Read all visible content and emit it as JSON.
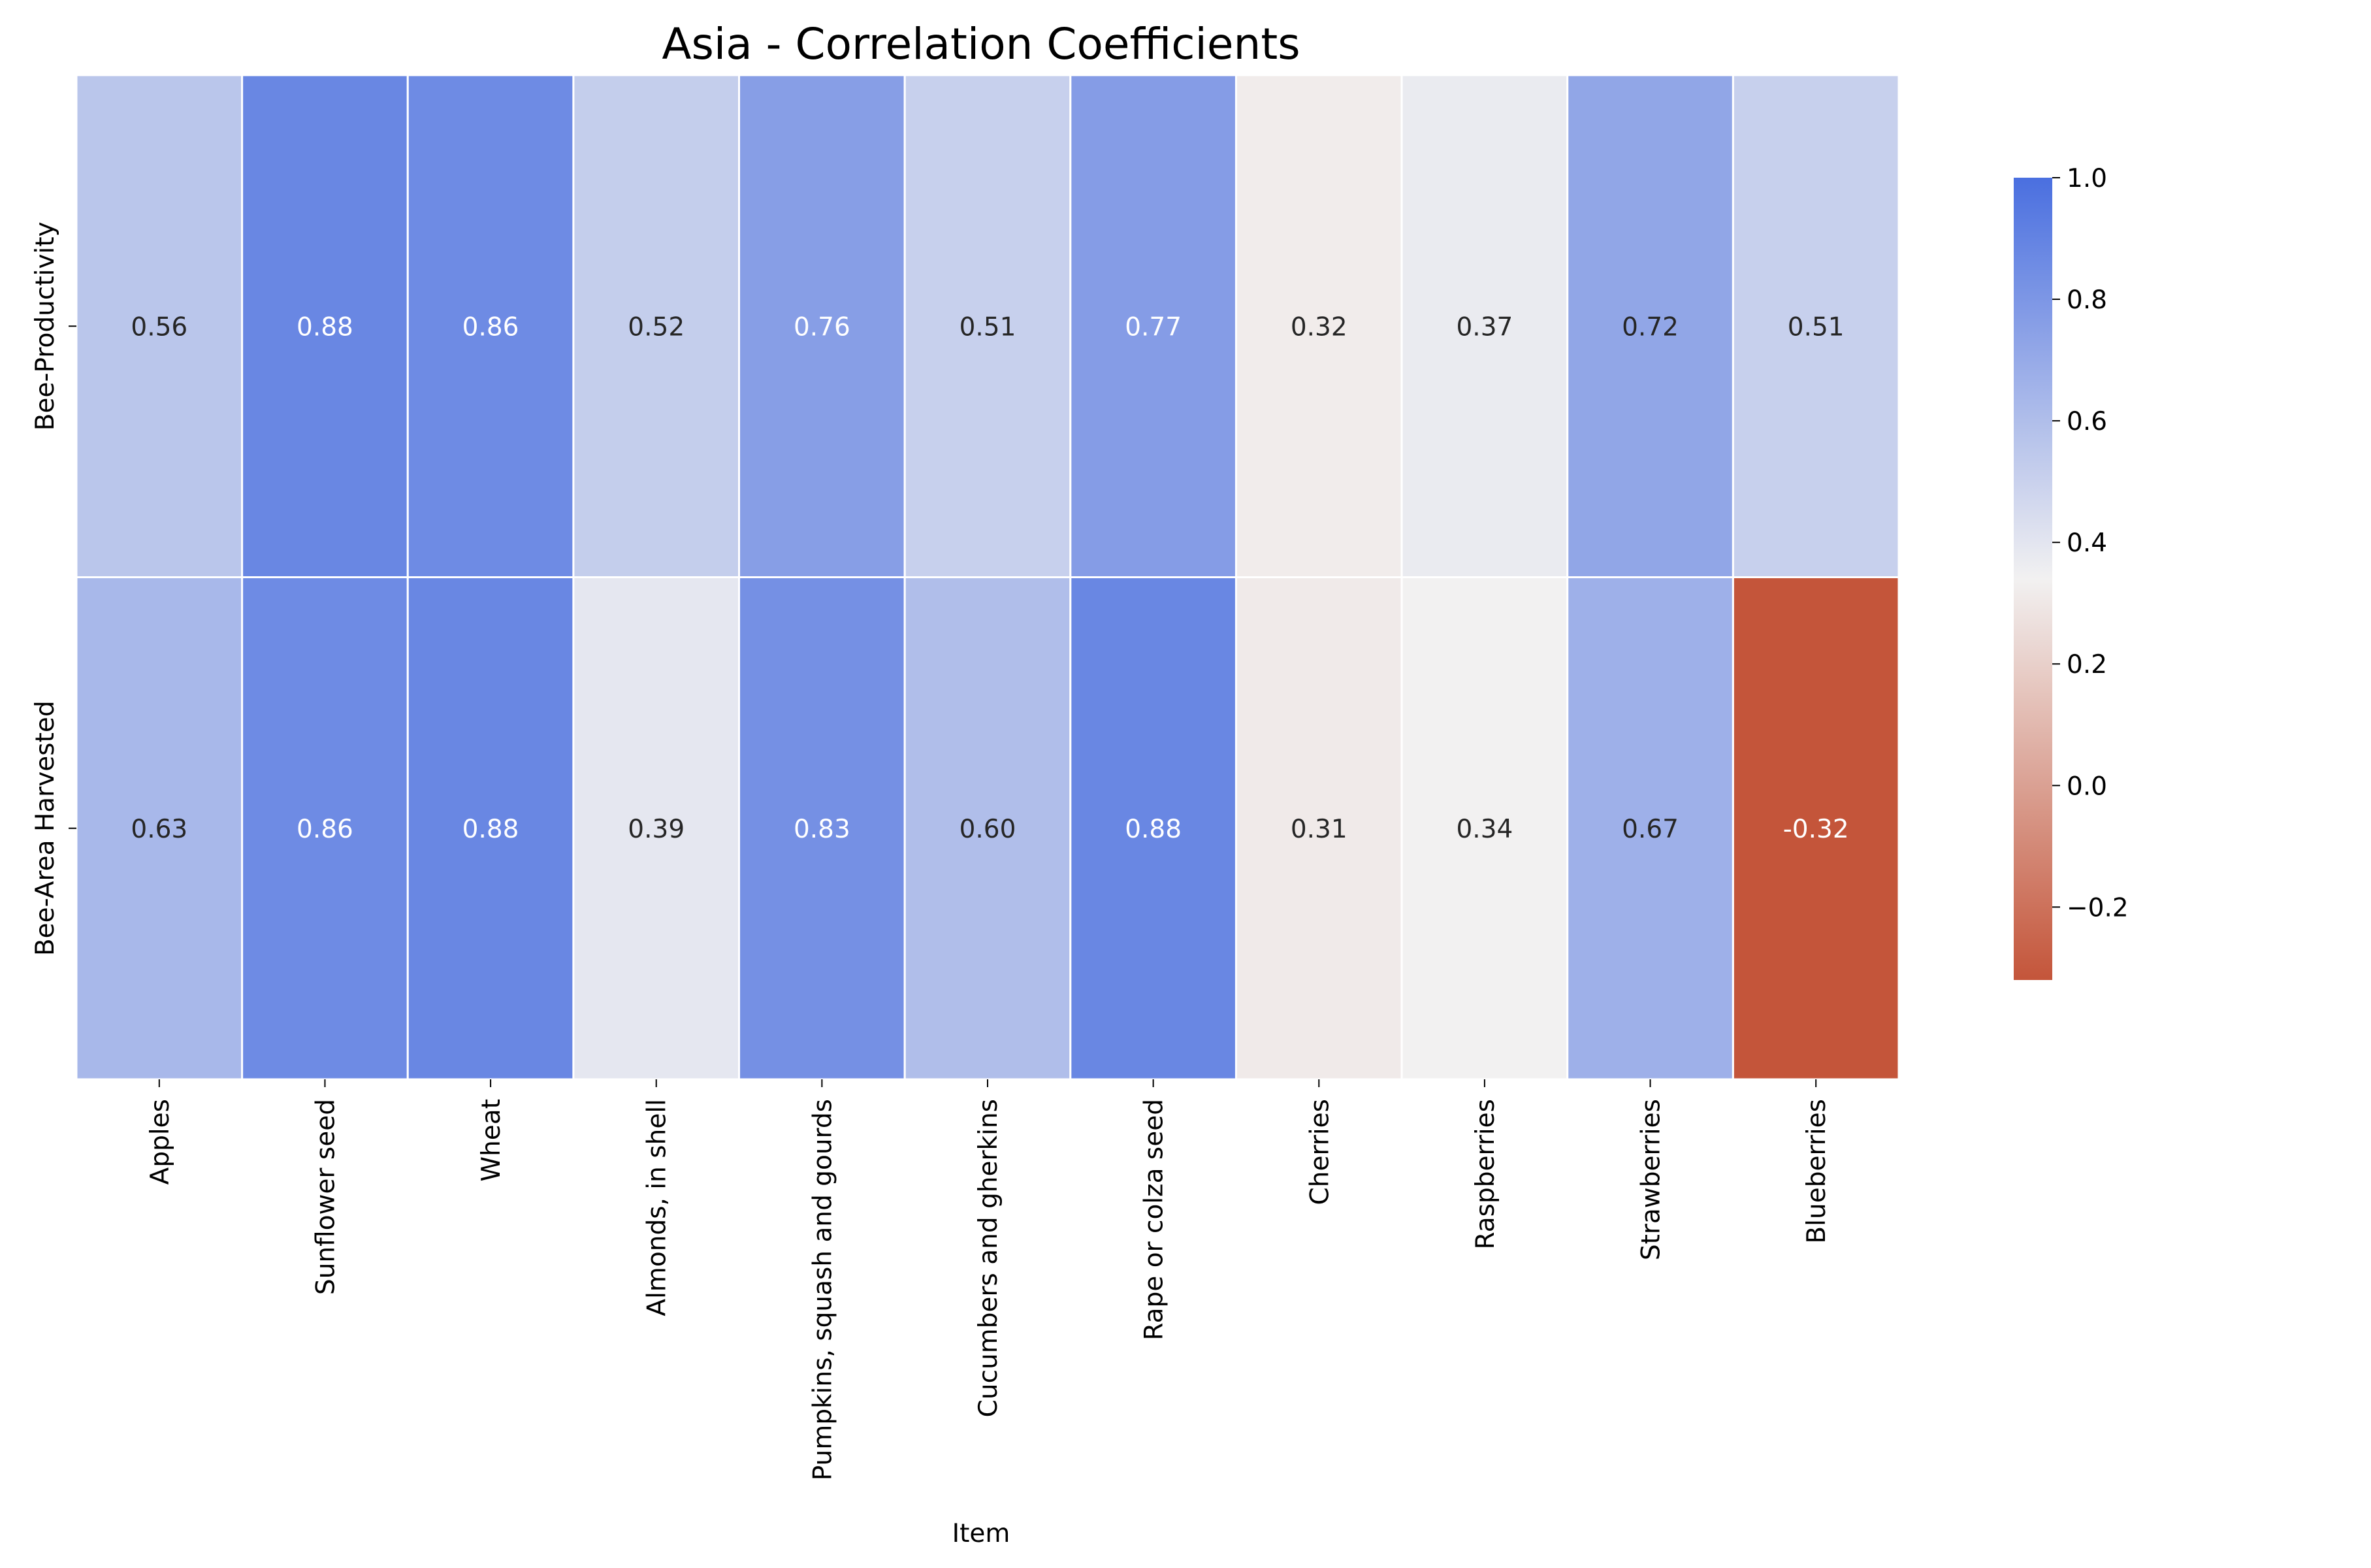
{
  "chart_data": {
    "type": "heatmap",
    "title": "Asia - Correlation Coefficients",
    "xlabel": "Item",
    "ylabel": "",
    "x_categories": [
      "Apples",
      "Sunflower seed",
      "Wheat",
      "Almonds, in shell",
      "Pumpkins, squash and gourds",
      "Cucumbers and gherkins",
      "Rape or colza seed",
      "Cherries",
      "Raspberries",
      "Strawberries",
      "Blueberries"
    ],
    "y_categories": [
      "Bee-Productivity",
      "Bee-Area Harvested"
    ],
    "values": [
      [
        0.56,
        0.88,
        0.86,
        0.52,
        0.76,
        0.51,
        0.77,
        0.32,
        0.37,
        0.72,
        0.51
      ],
      [
        0.63,
        0.86,
        0.88,
        0.39,
        0.83,
        0.6,
        0.88,
        0.31,
        0.34,
        0.67,
        -0.32
      ]
    ],
    "value_labels": [
      [
        "0.56",
        "0.88",
        "0.86",
        "0.52",
        "0.76",
        "0.51",
        "0.77",
        "0.32",
        "0.37",
        "0.72",
        "0.51"
      ],
      [
        "0.63",
        "0.86",
        "0.88",
        "0.39",
        "0.83",
        "0.60",
        "0.88",
        "0.31",
        "0.34",
        "0.67",
        "-0.32"
      ]
    ],
    "colorbar": {
      "range": [
        -0.32,
        1.0
      ],
      "ticks": [
        1.0,
        0.8,
        0.6,
        0.4,
        0.2,
        0.0,
        -0.2
      ],
      "tick_labels": [
        "1.0",
        "0.8",
        "0.6",
        "0.4",
        "0.2",
        "0.0",
        "−0.2"
      ],
      "colormap": "diverging blue-white-red",
      "low_color": "#c4553a",
      "mid_color": "#f2f1f1",
      "high_color": "#4a6fe0"
    },
    "grid": false,
    "legend": "colorbar right"
  }
}
